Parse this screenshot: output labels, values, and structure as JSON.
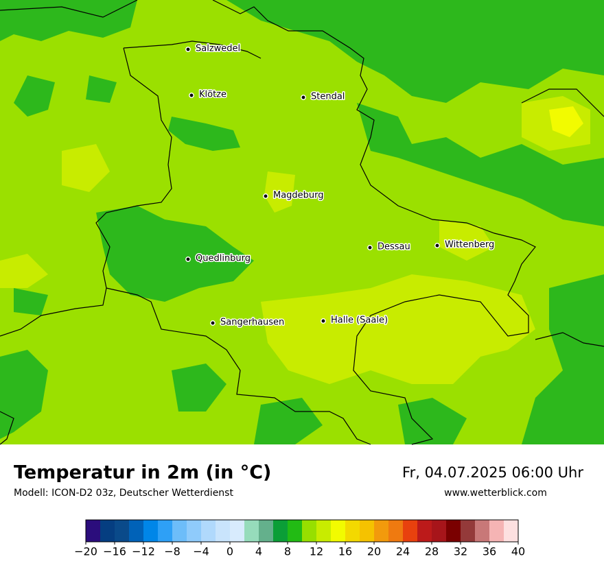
{
  "map": {
    "cities": [
      "Salzwedel",
      "Klötze",
      "Stendal",
      "Magdeburg",
      "Dessau",
      "Wittenberg",
      "Quedlinburg",
      "Sangerhausen",
      "Halle (Saale)"
    ]
  },
  "footer": {
    "title": "Temperatur in 2m (in °C)",
    "subtitle": "Modell: ICON-D2 03z, Deutscher Wetterdienst",
    "datetime": "Fr, 04.07.2025 06:00 Uhr",
    "website": "www.wetterblick.com"
  },
  "colorbar": {
    "lim": [
      -20,
      40
    ],
    "colors": [
      "#2b0d7c",
      "#053e81",
      "#0a4a8a",
      "#0062b8",
      "#0086e8",
      "#2ea0f6",
      "#6dbdf9",
      "#8fcbfb",
      "#b0d9fc",
      "#c9e4fc",
      "#d8ebfd",
      "#96dcbb",
      "#64b08c",
      "#0b9e37",
      "#22bb14",
      "#97df00",
      "#c8ec00",
      "#f2fb00",
      "#f3d900",
      "#f5c200",
      "#f29a0c",
      "#ef7a10",
      "#e8410e",
      "#bc1a1a",
      "#a7151a",
      "#7a0000",
      "#943a3a",
      "#c87878",
      "#f5b4b4",
      "#fde0e0"
    ],
    "ticks": [
      {
        "value": -20,
        "label": "−20"
      },
      {
        "value": -16,
        "label": "−16"
      },
      {
        "value": -12,
        "label": "−12"
      },
      {
        "value": -8,
        "label": "−8"
      },
      {
        "value": -4,
        "label": "−4"
      },
      0,
      4,
      8,
      12,
      16,
      20,
      24,
      28,
      32,
      36,
      40
    ]
  }
}
